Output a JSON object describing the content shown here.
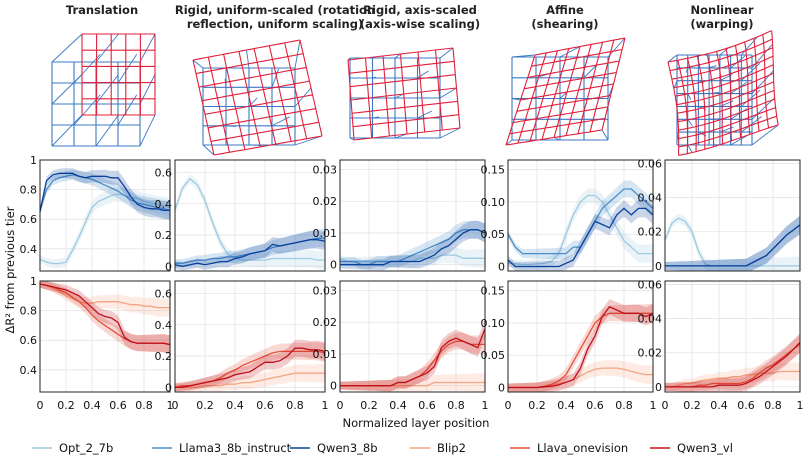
{
  "titles": [
    [
      "Translation"
    ],
    [
      "Rigid, uniform-scaled (rotation",
      "reflection, uniform scaling)"
    ],
    [
      "Rigid, axis-scaled",
      "(axis-wise scaling)"
    ],
    [
      "Affine",
      "(shearing)"
    ],
    [
      "Nonlinear",
      "(warping)"
    ]
  ],
  "xlabel": "Normalized layer position",
  "ylabel": "ΔR² from previous tier",
  "colors": {
    "Opt_2_7b": "#9ecae1",
    "Llama3_8b_instruct": "#4a8fc9",
    "Qwen3_8b": "#08419b",
    "Blip2": "#f4a582",
    "Llava_onevision": "#e4543c",
    "Qwen3_vl": "#c0101a",
    "grid_blue": "#3b78c4",
    "grid_red": "#e0203c"
  },
  "legend": [
    "Opt_2_7b",
    "Llama3_8b_instruct",
    "Qwen3_8b",
    "Blip2",
    "Llava_onevision",
    "Qwen3_vl"
  ],
  "chart_data": {
    "type": "line",
    "x": [
      0,
      0.05,
      0.1,
      0.15,
      0.2,
      0.25,
      0.3,
      0.35,
      0.4,
      0.45,
      0.5,
      0.55,
      0.6,
      0.65,
      0.7,
      0.75,
      0.8,
      0.85,
      0.9,
      0.95,
      1
    ],
    "xticks": [
      "0",
      "0.2",
      "0.4",
      "0.6",
      "0.8",
      "1"
    ],
    "panels": [
      {
        "row": "text",
        "col": 0,
        "ylim": [
          0.25,
          1.0
        ],
        "yticks": [
          "0.4",
          "0.6",
          "0.8",
          "1"
        ],
        "series": [
          {
            "name": "Opt_2_7b",
            "values": [
              0.33,
              0.31,
              0.3,
              0.3,
              0.31,
              0.39,
              0.48,
              0.58,
              0.68,
              0.72,
              0.74,
              0.76,
              0.77,
              0.76,
              0.75,
              0.74,
              0.72,
              0.71,
              0.7,
              0.69,
              0.68
            ]
          },
          {
            "name": "Llama3_8b_instruct",
            "values": [
              0.66,
              0.8,
              0.86,
              0.88,
              0.89,
              0.9,
              0.89,
              0.88,
              0.87,
              0.85,
              0.83,
              0.81,
              0.79,
              0.76,
              0.73,
              0.71,
              0.7,
              0.69,
              0.68,
              0.67,
              0.66
            ]
          },
          {
            "name": "Qwen3_8b",
            "values": [
              0.65,
              0.86,
              0.9,
              0.91,
              0.91,
              0.91,
              0.89,
              0.88,
              0.89,
              0.89,
              0.89,
              0.88,
              0.88,
              0.82,
              0.75,
              0.7,
              0.68,
              0.67,
              0.67,
              0.66,
              0.66
            ]
          }
        ]
      },
      {
        "row": "text",
        "col": 1,
        "ylim": [
          -0.03,
          0.68
        ],
        "yticks": [
          "0",
          "0.2",
          "0.4",
          "0.6"
        ],
        "series": [
          {
            "name": "Opt_2_7b",
            "values": [
              0.36,
              0.5,
              0.56,
              0.52,
              0.42,
              0.28,
              0.16,
              0.08,
              0.05,
              0.04,
              0.04,
              0.04,
              0.04,
              0.05,
              0.05,
              0.05,
              0.05,
              0.05,
              0.05,
              0.04,
              0.04
            ]
          },
          {
            "name": "Llama3_8b_instruct",
            "values": [
              0.02,
              0.02,
              0.03,
              0.04,
              0.04,
              0.05,
              0.05,
              0.06,
              0.06,
              0.07,
              0.08,
              0.09,
              0.1,
              0.12,
              0.13,
              0.14,
              0.15,
              0.16,
              0.17,
              0.18,
              0.18
            ]
          },
          {
            "name": "Qwen3_8b",
            "values": [
              0.01,
              0.0,
              0.01,
              0.02,
              0.01,
              0.02,
              0.03,
              0.03,
              0.05,
              0.06,
              0.08,
              0.09,
              0.1,
              0.14,
              0.13,
              0.14,
              0.15,
              0.16,
              0.17,
              0.17,
              0.16
            ]
          }
        ]
      },
      {
        "row": "text",
        "col": 2,
        "ylim": [
          -0.002,
          0.033
        ],
        "yticks": [
          "0",
          "0.01",
          "0.02",
          "0.03"
        ],
        "series": [
          {
            "name": "Opt_2_7b",
            "values": [
              0.002,
              0.001,
              0.001,
              0.001,
              0.001,
              0.001,
              0.001,
              0.001,
              0.001,
              0.001,
              0.001,
              0.002,
              0.002,
              0.002,
              0.003,
              0.003,
              0.003,
              0.002,
              0.002,
              0.002,
              0.002
            ]
          },
          {
            "name": "Llama3_8b_instruct",
            "values": [
              0.001,
              0.001,
              0.001,
              0.0,
              0.0,
              0.001,
              0.001,
              0.001,
              0.001,
              0.002,
              0.003,
              0.004,
              0.005,
              0.006,
              0.007,
              0.008,
              0.01,
              0.011,
              0.011,
              0.011,
              0.01
            ]
          },
          {
            "name": "Qwen3_8b",
            "values": [
              0.0,
              0.0,
              0.0,
              0.0,
              0.0,
              0.0,
              0.0,
              0.001,
              0.001,
              0.001,
              0.001,
              0.001,
              0.002,
              0.003,
              0.005,
              0.006,
              0.008,
              0.01,
              0.011,
              0.011,
              0.01
            ]
          }
        ]
      },
      {
        "row": "text",
        "col": 3,
        "ylim": [
          -0.007,
          0.165
        ],
        "yticks": [
          "0",
          "0.05",
          "0.10",
          "0.15"
        ],
        "series": [
          {
            "name": "Opt_2_7b",
            "values": [
              0.005,
              0.004,
              0.003,
              0.003,
              0.004,
              0.005,
              0.008,
              0.02,
              0.05,
              0.08,
              0.1,
              0.11,
              0.11,
              0.1,
              0.08,
              0.06,
              0.04,
              0.03,
              0.02,
              0.02,
              0.02
            ]
          },
          {
            "name": "Llama3_8b_instruct",
            "values": [
              0.05,
              0.03,
              0.02,
              0.02,
              0.02,
              0.02,
              0.02,
              0.02,
              0.02,
              0.03,
              0.03,
              0.05,
              0.07,
              0.09,
              0.1,
              0.11,
              0.12,
              0.12,
              0.11,
              0.1,
              0.09
            ]
          },
          {
            "name": "Qwen3_8b",
            "values": [
              0.01,
              0.0,
              0.0,
              0.0,
              0.0,
              0.0,
              0.0,
              0.0,
              0.005,
              0.01,
              0.03,
              0.05,
              0.07,
              0.065,
              0.06,
              0.08,
              0.09,
              0.08,
              0.09,
              0.09,
              0.08
            ]
          }
        ]
      },
      {
        "row": "text",
        "col": 4,
        "ylim": [
          -0.003,
          0.062
        ],
        "yticks": [
          "0",
          "0.02",
          "0.04",
          "0.06"
        ],
        "series": [
          {
            "name": "Opt_2_7b",
            "values": [
              0.015,
              0.025,
              0.028,
              0.026,
              0.02,
              0.008,
              0.001,
              0.0,
              0.0,
              0.0,
              0.0,
              0.0,
              0.0,
              0.0,
              0.0,
              0.0,
              0.0,
              0.0,
              0.0,
              0.0,
              0.0
            ]
          },
          {
            "name": "Llama3_8b_instruct",
            "values": [
              0.0,
              0.0,
              0.0,
              0.0,
              0.0,
              0.0,
              0.0,
              0.0,
              0.0,
              0.0,
              0.0,
              0.0,
              0.0,
              0.002,
              0.004,
              0.006,
              0.01,
              0.014,
              0.018,
              0.021,
              0.024
            ]
          },
          {
            "name": "Qwen3_8b",
            "values": [
              0.0,
              0.0,
              0.0,
              0.0,
              0.0,
              0.0,
              0.0,
              0.0,
              0.0,
              0.0,
              0.0,
              0.0,
              0.0,
              0.002,
              0.004,
              0.006,
              0.01,
              0.014,
              0.018,
              0.021,
              0.024
            ]
          }
        ]
      },
      {
        "row": "vision",
        "col": 0,
        "ylim": [
          0.25,
          1.0
        ],
        "yticks": [
          "0.4",
          "0.6",
          "0.8",
          "1"
        ],
        "series": [
          {
            "name": "Blip2",
            "values": [
              0.98,
              0.97,
              0.95,
              0.93,
              0.9,
              0.88,
              0.86,
              0.85,
              0.85,
              0.86,
              0.86,
              0.86,
              0.86,
              0.85,
              0.84,
              0.84,
              0.83,
              0.83,
              0.82,
              0.82,
              0.82
            ]
          },
          {
            "name": "Llava_onevision",
            "values": [
              0.98,
              0.97,
              0.96,
              0.94,
              0.92,
              0.89,
              0.86,
              0.82,
              0.77,
              0.73,
              0.7,
              0.67,
              0.64,
              0.61,
              0.59,
              0.58,
              0.58,
              0.58,
              0.58,
              0.58,
              0.57
            ]
          },
          {
            "name": "Qwen3_vl",
            "values": [
              0.98,
              0.97,
              0.96,
              0.95,
              0.94,
              0.92,
              0.9,
              0.86,
              0.82,
              0.78,
              0.76,
              0.75,
              0.72,
              0.62,
              0.59,
              0.58,
              0.58,
              0.58,
              0.58,
              0.58,
              0.57
            ]
          }
        ]
      },
      {
        "row": "vision",
        "col": 1,
        "ylim": [
          -0.03,
          0.68
        ],
        "yticks": [
          "0",
          "0.2",
          "0.4",
          "0.6"
        ],
        "series": [
          {
            "name": "Blip2",
            "values": [
              0.0,
              0.0,
              0.0,
              0.0,
              0.01,
              0.01,
              0.01,
              0.02,
              0.02,
              0.03,
              0.03,
              0.04,
              0.05,
              0.06,
              0.07,
              0.08,
              0.09,
              0.09,
              0.09,
              0.09,
              0.09
            ]
          },
          {
            "name": "Llava_onevision",
            "values": [
              0.0,
              0.01,
              0.01,
              0.02,
              0.03,
              0.04,
              0.06,
              0.09,
              0.11,
              0.14,
              0.16,
              0.18,
              0.2,
              0.22,
              0.23,
              0.23,
              0.23,
              0.23,
              0.23,
              0.23,
              0.22
            ]
          },
          {
            "name": "Qwen3_vl",
            "values": [
              0.0,
              0.0,
              0.01,
              0.02,
              0.03,
              0.04,
              0.05,
              0.06,
              0.08,
              0.09,
              0.1,
              0.13,
              0.16,
              0.16,
              0.17,
              0.2,
              0.25,
              0.25,
              0.24,
              0.24,
              0.23
            ]
          }
        ]
      },
      {
        "row": "vision",
        "col": 2,
        "ylim": [
          -0.002,
          0.033
        ],
        "yticks": [
          "0",
          "0.01",
          "0.02",
          "0.03"
        ],
        "series": [
          {
            "name": "Blip2",
            "values": [
              0.0,
              0.0,
              0.0,
              0.0,
              0.0,
              0.0,
              0.0,
              0.0,
              0.0,
              0.0,
              0.0,
              0.0,
              0.0,
              0.001,
              0.001,
              0.001,
              0.001,
              0.001,
              0.001,
              0.001,
              0.001
            ]
          },
          {
            "name": "Llava_onevision",
            "values": [
              0.0,
              0.0,
              0.0,
              0.0,
              0.0,
              0.0,
              0.0,
              0.0,
              0.001,
              0.001,
              0.002,
              0.003,
              0.005,
              0.008,
              0.011,
              0.013,
              0.014,
              0.014,
              0.013,
              0.013,
              0.013
            ]
          },
          {
            "name": "Qwen3_vl",
            "values": [
              0.0,
              0.0,
              0.0,
              0.0,
              0.0,
              0.0,
              0.0,
              0.0,
              0.001,
              0.001,
              0.002,
              0.003,
              0.004,
              0.006,
              0.012,
              0.014,
              0.015,
              0.014,
              0.013,
              0.012,
              0.018
            ]
          }
        ]
      },
      {
        "row": "vision",
        "col": 3,
        "ylim": [
          -0.007,
          0.165
        ],
        "yticks": [
          "0",
          "0.05",
          "0.10",
          "0.15"
        ],
        "series": [
          {
            "name": "Blip2",
            "values": [
              0.0,
              0.0,
              0.0,
              0.0,
              0.0,
              0.002,
              0.004,
              0.006,
              0.008,
              0.012,
              0.018,
              0.024,
              0.028,
              0.03,
              0.03,
              0.03,
              0.028,
              0.025,
              0.022,
              0.02,
              0.02
            ]
          },
          {
            "name": "Llava_onevision",
            "values": [
              0.0,
              0.0,
              0.0,
              0.0,
              0.0,
              0.002,
              0.005,
              0.01,
              0.02,
              0.04,
              0.06,
              0.08,
              0.1,
              0.11,
              0.115,
              0.115,
              0.115,
              0.115,
              0.115,
              0.115,
              0.115
            ]
          },
          {
            "name": "Qwen3_vl",
            "values": [
              0.0,
              0.0,
              0.0,
              0.0,
              0.0,
              0.001,
              0.002,
              0.004,
              0.008,
              0.012,
              0.03,
              0.06,
              0.08,
              0.11,
              0.125,
              0.12,
              0.115,
              0.115,
              0.115,
              0.11,
              0.115
            ]
          }
        ]
      },
      {
        "row": "vision",
        "col": 4,
        "ylim": [
          -0.003,
          0.062
        ],
        "yticks": [
          "0",
          "0.02",
          "0.04",
          "0.06"
        ],
        "series": [
          {
            "name": "Blip2",
            "values": [
              0.0,
              0.0,
              0.001,
              0.002,
              0.002,
              0.003,
              0.004,
              0.004,
              0.005,
              0.005,
              0.006,
              0.006,
              0.007,
              0.007,
              0.008,
              0.008,
              0.008,
              0.009,
              0.009,
              0.009,
              0.009
            ]
          },
          {
            "name": "Llava_onevision",
            "values": [
              0.0,
              0.0,
              0.0,
              0.0,
              0.0,
              0.001,
              0.001,
              0.002,
              0.002,
              0.002,
              0.002,
              0.002,
              0.003,
              0.005,
              0.008,
              0.011,
              0.013,
              0.016,
              0.019,
              0.022,
              0.025
            ]
          },
          {
            "name": "Qwen3_vl",
            "values": [
              0.0,
              0.0,
              0.0,
              0.0,
              0.0,
              0.0,
              0.0,
              0.0,
              0.001,
              0.001,
              0.001,
              0.001,
              0.002,
              0.004,
              0.006,
              0.009,
              0.012,
              0.015,
              0.018,
              0.022,
              0.026
            ]
          }
        ]
      }
    ]
  }
}
